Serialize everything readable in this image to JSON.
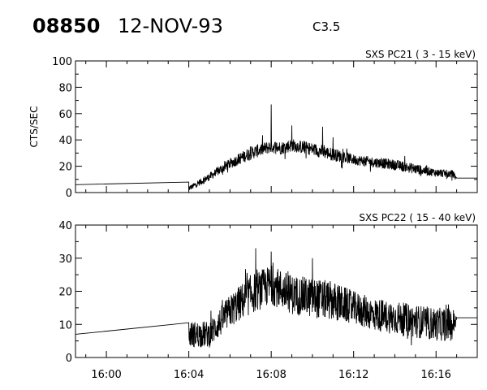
{
  "header": {
    "event_number": "08850",
    "date": "12-NOV-93",
    "flare_class": "C3.5"
  },
  "chart_data": [
    {
      "type": "line",
      "title": "SXS PC21  (  3 - 15 keV)",
      "ylabel": "CTS/SEC",
      "xlabel": "",
      "xlim": [
        "15:58:30",
        "16:18:00"
      ],
      "ylim": [
        0,
        100
      ],
      "y_ticks": [
        0,
        20,
        40,
        60,
        80,
        100
      ],
      "x_ticks": [
        "16:00",
        "16:04",
        "16:08",
        "16:12",
        "16:16"
      ],
      "grid": false,
      "series": [
        {
          "x": [
            "15:58:30",
            "16:04:00",
            "16:04:00",
            "16:05:00",
            "16:06:00",
            "16:07:00",
            "16:08:00",
            "16:08:30",
            "16:09:00",
            "16:10:00",
            "16:11:00",
            "16:12:00",
            "16:13:00",
            "16:14:00",
            "16:15:00",
            "16:16:00",
            "16:16:50",
            "16:17:00",
            "16:18:00"
          ],
          "y": [
            6,
            8,
            3,
            12,
            22,
            30,
            35,
            34,
            36,
            33,
            29,
            25,
            23,
            21,
            18,
            15,
            14,
            11,
            11
          ],
          "noise": [
            0,
            0,
            2,
            3,
            4,
            5,
            5,
            5,
            5,
            5,
            5,
            4,
            4,
            4,
            4,
            3,
            3,
            0,
            0
          ]
        }
      ],
      "spikes": [
        {
          "x": "16:08:00",
          "y": 67
        },
        {
          "x": "16:09:00",
          "y": 51
        },
        {
          "x": "16:10:30",
          "y": 50
        },
        {
          "x": "16:11:00",
          "y": 42
        }
      ]
    },
    {
      "type": "line",
      "title": "SXS PC22  ( 15 - 40 keV)",
      "ylabel": "",
      "xlabel": "",
      "xlim": [
        "15:58:30",
        "16:18:00"
      ],
      "ylim": [
        0,
        40
      ],
      "y_ticks": [
        0,
        10,
        20,
        30,
        40
      ],
      "x_ticks": [
        "16:00",
        "16:04",
        "16:08",
        "16:12",
        "16:16"
      ],
      "grid": false,
      "series": [
        {
          "x": [
            "15:58:30",
            "16:04:00",
            "16:04:00",
            "16:05:00",
            "16:06:00",
            "16:07:00",
            "16:08:00",
            "16:09:00",
            "16:10:00",
            "16:11:00",
            "16:12:00",
            "16:13:00",
            "16:14:00",
            "16:15:00",
            "16:16:00",
            "16:16:50",
            "16:17:00",
            "16:18:00"
          ],
          "y": [
            7,
            10.5,
            7,
            7,
            14,
            19,
            22,
            19,
            18,
            17,
            15,
            13,
            12,
            11,
            10,
            10,
            12,
            12
          ],
          "noise": [
            0,
            0,
            4,
            4,
            5,
            6,
            6,
            6,
            6,
            6,
            5,
            5,
            5,
            5,
            5,
            5,
            0,
            0
          ]
        }
      ],
      "spikes": [
        {
          "x": "16:07:15",
          "y": 33
        },
        {
          "x": "16:08:00",
          "y": 32
        },
        {
          "x": "16:10:00",
          "y": 30
        }
      ]
    }
  ]
}
